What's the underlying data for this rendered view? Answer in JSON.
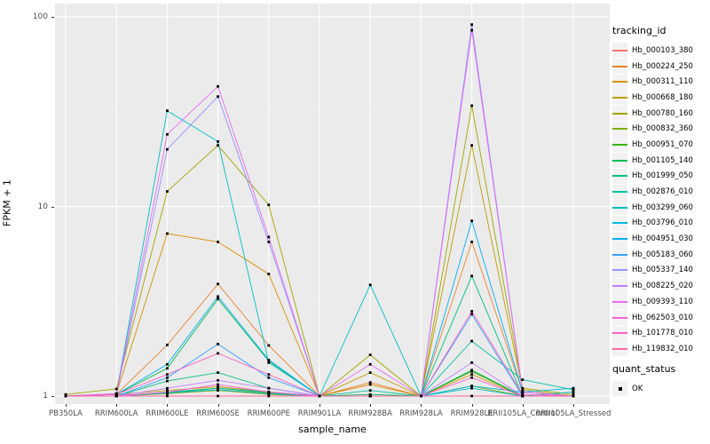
{
  "y_axis": {
    "title": "FPKM + 1",
    "tick_labels": [
      "100",
      "10",
      "1"
    ],
    "tick_values": [
      100,
      10,
      1
    ]
  },
  "x_axis": {
    "title": "sample_name"
  },
  "legend": {
    "tracking_title": "tracking_id",
    "quant_title": "quant_status",
    "quant_items": [
      {
        "label": "OK"
      }
    ]
  },
  "style_colors": {
    "panel_background": "#EBEBEB",
    "grid_major": "#FFFFFF",
    "grid_minor": "#F7F7F7",
    "axis_text": "#4D4D4D",
    "point_color": "#000000",
    "legend_key_background": "#F2F2F2"
  },
  "chart_data": {
    "type": "line",
    "title": "",
    "xlabel": "sample_name",
    "ylabel": "FPKM + 1",
    "y_scale": "log10",
    "ylim": [
      1,
      100
    ],
    "y_major_breaks": [
      1,
      10,
      100
    ],
    "y_minor_breaks": [
      3.162,
      31.62
    ],
    "grid": true,
    "legend_position": "right",
    "point_shape": "filled-square",
    "quant_status": "OK",
    "x_categories": [
      "PB350LA",
      "RRIM600LA",
      "RRIM600LE",
      "RRIM600SE",
      "RRIM600PE",
      "RRIM901LA",
      "RRIM928BA",
      "RRIM928LA",
      "RRIM928LE",
      "RRII105LA_Control",
      "RRII105LA_Stressed"
    ],
    "series": [
      {
        "name": "Hb_000103_380",
        "color": "#F8766D",
        "values": [
          1,
          1,
          1.04,
          1.1,
          1.04,
          1,
          1,
          1,
          1.35,
          1,
          1
        ]
      },
      {
        "name": "Hb_000224_250",
        "color": "#EA8331",
        "values": [
          1,
          1.02,
          1.86,
          3.9,
          1.85,
          1,
          1.18,
          1,
          6.5,
          1.05,
          1
        ]
      },
      {
        "name": "Hb_000311_110",
        "color": "#D89000",
        "values": [
          1,
          1.03,
          7.2,
          6.5,
          4.4,
          1,
          1.15,
          1,
          1.3,
          1,
          1
        ]
      },
      {
        "name": "Hb_000668_180",
        "color": "#C09B00",
        "values": [
          1,
          1.02,
          1.07,
          1.12,
          1.05,
          1,
          1.33,
          1,
          21,
          1.08,
          1
        ]
      },
      {
        "name": "Hb_000780_160",
        "color": "#A3A500",
        "values": [
          1.02,
          1.09,
          12,
          21,
          10.2,
          1,
          1.65,
          1,
          34,
          1.1,
          1.02
        ]
      },
      {
        "name": "Hb_000832_360",
        "color": "#7CAE00",
        "values": [
          1,
          1,
          1.03,
          1.07,
          1.02,
          1,
          1,
          1,
          1.13,
          1,
          1
        ]
      },
      {
        "name": "Hb_000951_070",
        "color": "#39B600",
        "values": [
          1,
          1,
          1.04,
          1.1,
          1.04,
          1,
          1,
          1,
          1.35,
          1,
          1
        ]
      },
      {
        "name": "Hb_001105_140",
        "color": "#00BB4E",
        "values": [
          1,
          1.02,
          1.4,
          3.25,
          1.53,
          1,
          1.02,
          1,
          1.37,
          1,
          1
        ]
      },
      {
        "name": "Hb_001999_050",
        "color": "#00BF7D",
        "values": [
          1,
          1,
          1.2,
          1.33,
          1.1,
          1,
          1,
          1,
          4.3,
          1,
          1
        ]
      },
      {
        "name": "Hb_002876_010",
        "color": "#00C1A3",
        "values": [
          1,
          1,
          1.05,
          1.1,
          1.05,
          1,
          1.07,
          1,
          1.95,
          1.22,
          1.08
        ]
      },
      {
        "name": "Hb_003299_060",
        "color": "#00BFC4",
        "values": [
          1,
          1.03,
          32,
          22,
          1.5,
          1,
          3.86,
          1,
          1.1,
          1,
          1.05
        ]
      },
      {
        "name": "Hb_003796_010",
        "color": "#00BAE0",
        "values": [
          1,
          1,
          1.04,
          1.08,
          1.03,
          1,
          1,
          1,
          1.13,
          1.05,
          1.1
        ]
      },
      {
        "name": "Hb_004951_030",
        "color": "#00B0F6",
        "values": [
          1,
          1.02,
          1.47,
          3.35,
          1.55,
          1,
          1,
          1,
          8.4,
          1.05,
          1
        ]
      },
      {
        "name": "Hb_005183_060",
        "color": "#35A2FF",
        "values": [
          1,
          1,
          1.25,
          1.88,
          1.25,
          1,
          1,
          1,
          2.7,
          1,
          1
        ]
      },
      {
        "name": "Hb_005337_140",
        "color": "#9590FF",
        "values": [
          1,
          1.02,
          20,
          38,
          6.5,
          1,
          1,
          1,
          91,
          1.05,
          1
        ]
      },
      {
        "name": "Hb_008225_020",
        "color": "#C77CFF",
        "values": [
          1,
          1,
          1.1,
          1.21,
          1.1,
          1,
          1,
          1,
          1.5,
          1,
          1
        ]
      },
      {
        "name": "Hb_009393_110",
        "color": "#E76BF3",
        "values": [
          1,
          1.03,
          24,
          43,
          6.9,
          1,
          1.47,
          1,
          85,
          1.05,
          1
        ]
      },
      {
        "name": "Hb_062503_010",
        "color": "#FA62DB",
        "values": [
          1,
          1,
          1.05,
          1.15,
          1.05,
          1,
          1,
          1,
          1.25,
          1,
          1
        ]
      },
      {
        "name": "Hb_101778_010",
        "color": "#FF61C3",
        "values": [
          1,
          1.02,
          1.3,
          1.68,
          1.3,
          1,
          1,
          1,
          2.8,
          1.02,
          1
        ]
      },
      {
        "name": "Hb_119832_010",
        "color": "#FF67A4",
        "values": [
          1,
          1,
          1,
          1,
          1,
          1,
          1,
          1,
          1,
          1,
          1
        ]
      }
    ]
  }
}
